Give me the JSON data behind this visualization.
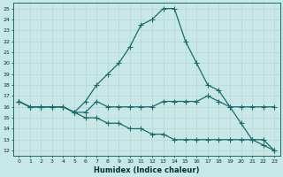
{
  "xlabel": "Humidex (Indice chaleur)",
  "background_color": "#c8e8e8",
  "line_color": "#1a6b6b",
  "grid_color": "#b0d8d8",
  "xlim": [
    -0.5,
    23.5
  ],
  "ylim": [
    11.5,
    25.5
  ],
  "yticks": [
    12,
    13,
    14,
    15,
    16,
    17,
    18,
    19,
    20,
    21,
    22,
    23,
    24,
    25
  ],
  "xticks": [
    0,
    1,
    2,
    3,
    4,
    5,
    6,
    7,
    8,
    9,
    10,
    11,
    12,
    13,
    14,
    15,
    16,
    17,
    18,
    19,
    20,
    21,
    22,
    23
  ],
  "s1_x": [
    0,
    1,
    2,
    3,
    4,
    5,
    6,
    7,
    8,
    9,
    10,
    11,
    12,
    13,
    14,
    15,
    16,
    17,
    18,
    19,
    20,
    21,
    22,
    23
  ],
  "s1_y": [
    16.5,
    16.0,
    16.0,
    16.0,
    16.0,
    15.5,
    16.5,
    18.0,
    19.0,
    20.0,
    21.5,
    23.5,
    24.0,
    25.0,
    25.0,
    22.0,
    20.0,
    18.0,
    17.5,
    16.0,
    14.5,
    13.0,
    12.5,
    12.0
  ],
  "s2_x": [
    0,
    1,
    2,
    3,
    4,
    5,
    6,
    7,
    8,
    9,
    10,
    11,
    12,
    13,
    14,
    15,
    16,
    17,
    18,
    19,
    20,
    21,
    22,
    23
  ],
  "s2_y": [
    16.5,
    16.0,
    16.0,
    16.0,
    16.0,
    15.5,
    15.5,
    16.5,
    16.0,
    16.0,
    16.0,
    16.0,
    16.0,
    16.5,
    16.5,
    16.5,
    16.5,
    17.0,
    16.5,
    16.0,
    16.0,
    16.0,
    16.0,
    16.0
  ],
  "s3_x": [
    0,
    1,
    2,
    3,
    4,
    5,
    6,
    7,
    8,
    9,
    10,
    11,
    12,
    13,
    14,
    15,
    16,
    17,
    18,
    19,
    20,
    21,
    22,
    23
  ],
  "s3_y": [
    16.5,
    16.0,
    16.0,
    16.0,
    16.0,
    15.5,
    15.0,
    15.0,
    14.5,
    14.5,
    14.0,
    14.0,
    13.5,
    13.5,
    13.0,
    13.0,
    13.0,
    13.0,
    13.0,
    13.0,
    13.0,
    13.0,
    13.0,
    12.0
  ]
}
